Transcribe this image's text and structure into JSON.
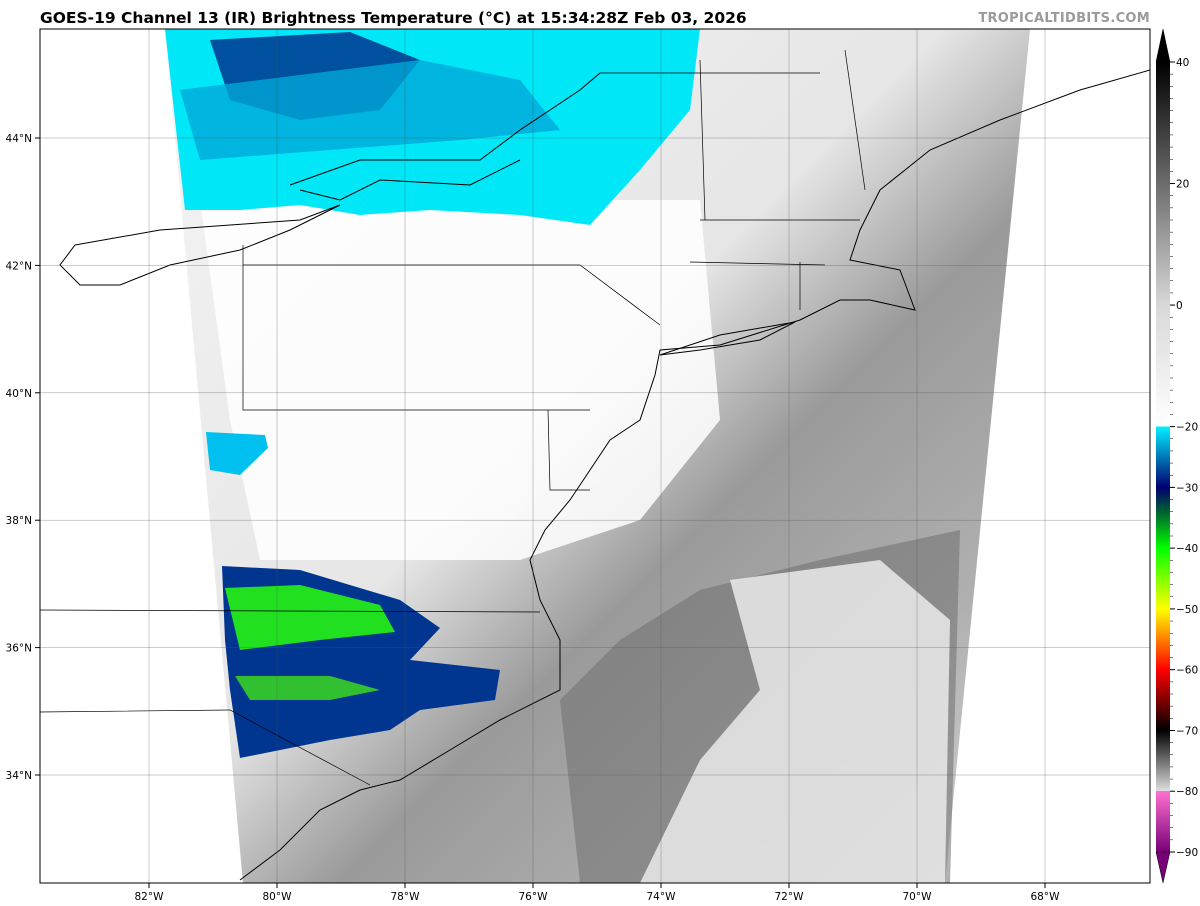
{
  "header": {
    "title": "GOES-19 Channel 13 (IR) Brightness Temperature (°C) at 15:34:28Z Feb 03, 2026",
    "watermark": "TROPICALTIDBITS.COM"
  },
  "map": {
    "projection": "plate-carree",
    "lon_range": [
      -83.7,
      -66.4
    ],
    "lat_range": [
      32.3,
      45.7
    ],
    "grid": true,
    "lon_labels": [
      "82°W",
      "80°W",
      "78°W",
      "76°W",
      "74°W",
      "72°W",
      "70°W",
      "68°W"
    ],
    "lon_values": [
      -82,
      -80,
      -78,
      -76,
      -74,
      -72,
      -70,
      -68
    ],
    "lat_labels": [
      "44°N",
      "42°N",
      "40°N",
      "38°N",
      "36°N",
      "34°N"
    ],
    "lat_values": [
      44,
      42,
      40,
      38,
      36,
      34
    ]
  },
  "colorbar": {
    "range": [
      -90,
      40
    ],
    "ticks": [
      "40",
      "20",
      "0",
      "−20",
      "−30",
      "−40",
      "−50",
      "−60",
      "−70",
      "−80",
      "−90"
    ],
    "tick_values": [
      40,
      20,
      0,
      -20,
      -30,
      -40,
      -50,
      -60,
      -70,
      -80,
      -90
    ],
    "extend": "both",
    "colors": {
      "warm_black": "#000000",
      "zero_gray": "#d8d8d8",
      "cold_white": "#ffffff",
      "cyan": "#00f0ff",
      "dark_blue": "#000070",
      "dark_green": "#006030",
      "green": "#00ff00",
      "yellow": "#ffff00",
      "orange": "#ff8000",
      "red": "#ff0000",
      "black": "#000000",
      "light_gray": "#e0e0e0",
      "pink": "#ff70d0",
      "purple": "#780078"
    }
  }
}
